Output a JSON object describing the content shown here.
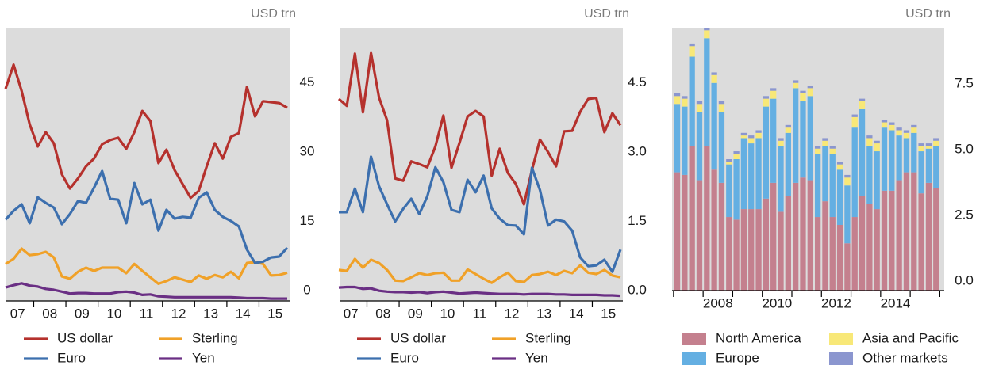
{
  "chart_data": [
    {
      "type": "line",
      "y_unit_label": "USD trn",
      "x": [
        2007.125,
        2007.375,
        2007.625,
        2007.875,
        2008.125,
        2008.375,
        2008.625,
        2008.875,
        2009.125,
        2009.375,
        2009.625,
        2009.875,
        2010.125,
        2010.375,
        2010.625,
        2010.875,
        2011.125,
        2011.375,
        2011.625,
        2011.875,
        2012.125,
        2012.375,
        2012.625,
        2012.875,
        2013.125,
        2013.375,
        2013.625,
        2013.875,
        2014.125,
        2014.375,
        2014.625,
        2014.875,
        2015.125,
        2015.375,
        2015.625,
        2015.875
      ],
      "xlim": [
        2007.15,
        2015.95
      ],
      "xticks": [
        {
          "value": 2007.5,
          "label": "07"
        },
        {
          "value": 2008.5,
          "label": "08"
        },
        {
          "value": 2009.5,
          "label": "09"
        },
        {
          "value": 2010.5,
          "label": "10"
        },
        {
          "value": 2011.5,
          "label": "11"
        },
        {
          "value": 2012.5,
          "label": "12"
        },
        {
          "value": 2013.5,
          "label": "13"
        },
        {
          "value": 2014.5,
          "label": "14"
        },
        {
          "value": 2015.5,
          "label": "15"
        }
      ],
      "xtick_marks": [
        2008,
        2009,
        2010,
        2011,
        2012,
        2013,
        2014,
        2015
      ],
      "ylim": [
        -2.2,
        56.9
      ],
      "yticks": [
        0,
        15,
        30,
        45
      ],
      "series": [
        {
          "name": "US dollar",
          "color": "#b5312d",
          "values": [
            43.7,
            48.9,
            43.2,
            36,
            31.2,
            34.3,
            31.9,
            25.2,
            22.1,
            24.3,
            26.9,
            28.6,
            31.7,
            32.6,
            33.1,
            30.7,
            34.3,
            38.9,
            36.7,
            27.6,
            30.5,
            26.1,
            23.1,
            20.1,
            21.6,
            26.9,
            31.9,
            28.6,
            33.3,
            34.1,
            44.1,
            37.7,
            41,
            40.8,
            40.6,
            39.6
          ]
        },
        {
          "name": "Sterling",
          "color": "#f0a128",
          "values": [
            5.8,
            6.9,
            9.1,
            7.7,
            7.9,
            8.4,
            7.2,
            3.1,
            2.6,
            4.1,
            5,
            4.3,
            5,
            5,
            5,
            3.8,
            5.8,
            4.3,
            2.9,
            1.5,
            2.1,
            2.9,
            2.4,
            1.9,
            3.3,
            2.6,
            3.4,
            2.9,
            4.1,
            2.7,
            6,
            6.2,
            5.8,
            3.3,
            3.4,
            3.9
          ]
        },
        {
          "name": "Euro",
          "color": "#3c6fae",
          "values": [
            15.4,
            17.3,
            18.7,
            14.6,
            20.2,
            19,
            18,
            14.4,
            16.6,
            19.4,
            19,
            22.3,
            25.9,
            19.9,
            19.7,
            14.6,
            23.3,
            18.7,
            19.7,
            13,
            17.5,
            15.6,
            16,
            15.8,
            20.1,
            21.3,
            17.5,
            16,
            15.1,
            13.9,
            8.9,
            6,
            6.3,
            7.2,
            7.4,
            9.3
          ]
        },
        {
          "name": "Yen",
          "color": "#6a2f84",
          "values": [
            0.7,
            1.2,
            1.6,
            1.1,
            0.9,
            0.4,
            0.2,
            -0.2,
            -0.6,
            -0.5,
            -0.5,
            -0.6,
            -0.6,
            -0.6,
            -0.3,
            -0.2,
            -0.4,
            -0.9,
            -0.8,
            -1.2,
            -1.3,
            -1.4,
            -1.4,
            -1.4,
            -1.4,
            -1.4,
            -1.4,
            -1.4,
            -1.4,
            -1.5,
            -1.6,
            -1.6,
            -1.6,
            -1.7,
            -1.7,
            -1.7
          ]
        }
      ]
    },
    {
      "type": "line",
      "y_unit_label": "USD trn",
      "x": [
        2007.125,
        2007.375,
        2007.625,
        2007.875,
        2008.125,
        2008.375,
        2008.625,
        2008.875,
        2009.125,
        2009.375,
        2009.625,
        2009.875,
        2010.125,
        2010.375,
        2010.625,
        2010.875,
        2011.125,
        2011.375,
        2011.625,
        2011.875,
        2012.125,
        2012.375,
        2012.625,
        2012.875,
        2013.125,
        2013.375,
        2013.625,
        2013.875,
        2014.125,
        2014.375,
        2014.625,
        2014.875,
        2015.125,
        2015.375,
        2015.625,
        2015.875
      ],
      "xlim": [
        2007.15,
        2015.95
      ],
      "xticks": [
        {
          "value": 2007.5,
          "label": "07"
        },
        {
          "value": 2008.5,
          "label": "08"
        },
        {
          "value": 2009.5,
          "label": "09"
        },
        {
          "value": 2010.5,
          "label": "10"
        },
        {
          "value": 2011.5,
          "label": "11"
        },
        {
          "value": 2012.5,
          "label": "12"
        },
        {
          "value": 2013.5,
          "label": "13"
        },
        {
          "value": 2014.5,
          "label": "14"
        },
        {
          "value": 2015.5,
          "label": "15"
        }
      ],
      "xtick_marks": [
        2008,
        2009,
        2010,
        2011,
        2012,
        2013,
        2014,
        2015
      ],
      "ylim": [
        -0.22,
        5.69
      ],
      "yticks": [
        {
          "value": 0,
          "label": "0.0"
        },
        1.5,
        {
          "value": 3,
          "label": "3.0"
        },
        4.5
      ],
      "series": [
        {
          "name": "US dollar",
          "color": "#b5312d",
          "values": [
            4.15,
            4.0,
            5.13,
            3.86,
            5.14,
            4.18,
            3.69,
            2.43,
            2.38,
            2.8,
            2.74,
            2.67,
            3.12,
            3.79,
            2.66,
            3.2,
            3.77,
            3.89,
            3.77,
            2.49,
            3.07,
            2.55,
            2.31,
            1.87,
            2.61,
            3.27,
            3.0,
            2.69,
            3.45,
            3.46,
            3.87,
            4.15,
            4.17,
            3.43,
            3.84,
            3.58
          ]
        },
        {
          "name": "Sterling",
          "color": "#f0a128",
          "values": [
            0.45,
            0.43,
            0.69,
            0.5,
            0.67,
            0.6,
            0.45,
            0.22,
            0.21,
            0.29,
            0.38,
            0.34,
            0.38,
            0.39,
            0.22,
            0.22,
            0.46,
            0.36,
            0.26,
            0.17,
            0.29,
            0.39,
            0.21,
            0.19,
            0.34,
            0.36,
            0.41,
            0.34,
            0.43,
            0.38,
            0.55,
            0.39,
            0.36,
            0.45,
            0.33,
            0.29
          ]
        },
        {
          "name": "Euro",
          "color": "#3c6fae",
          "values": [
            1.7,
            1.7,
            2.21,
            1.7,
            2.9,
            2.26,
            1.87,
            1.5,
            1.77,
            1.99,
            1.66,
            2.04,
            2.67,
            2.35,
            1.75,
            1.7,
            2.4,
            2.13,
            2.49,
            1.78,
            1.56,
            1.42,
            1.41,
            1.22,
            2.66,
            2.18,
            1.41,
            1.54,
            1.5,
            1.3,
            0.72,
            0.53,
            0.55,
            0.67,
            0.41,
            0.89
          ]
        },
        {
          "name": "Yen",
          "color": "#6a2f84",
          "values": [
            0.07,
            0.08,
            0.08,
            0.04,
            0.05,
            0.0,
            -0.02,
            -0.03,
            -0.03,
            -0.04,
            -0.03,
            -0.05,
            -0.03,
            -0.02,
            -0.04,
            -0.06,
            -0.05,
            -0.04,
            -0.05,
            -0.06,
            -0.07,
            -0.07,
            -0.07,
            -0.08,
            -0.07,
            -0.07,
            -0.07,
            -0.08,
            -0.08,
            -0.09,
            -0.09,
            -0.09,
            -0.09,
            -0.1,
            -0.1,
            -0.11
          ]
        }
      ]
    },
    {
      "type": "stacked_bar",
      "y_unit_label": "USD trn",
      "x": [
        2007.125,
        2007.375,
        2007.625,
        2007.875,
        2008.125,
        2008.375,
        2008.625,
        2008.875,
        2009.125,
        2009.375,
        2009.625,
        2009.875,
        2010.125,
        2010.375,
        2010.625,
        2010.875,
        2011.125,
        2011.375,
        2011.625,
        2011.875,
        2012.125,
        2012.375,
        2012.625,
        2012.875,
        2013.125,
        2013.375,
        2013.625,
        2013.875,
        2014.125,
        2014.375,
        2014.625,
        2014.875,
        2015.125,
        2015.375,
        2015.625,
        2015.875
      ],
      "xlim": [
        2006.95,
        2016.15
      ],
      "xticks": [
        {
          "value": 2008.5,
          "label": "2008"
        },
        {
          "value": 2010.5,
          "label": "2010"
        },
        {
          "value": 2012.5,
          "label": "2012"
        },
        {
          "value": 2014.5,
          "label": "2014"
        }
      ],
      "xtick_marks": [
        2007,
        2008,
        2009,
        2010,
        2011,
        2012,
        2013,
        2014,
        2015,
        2016
      ],
      "ylim": [
        0,
        10
      ],
      "yticks": [
        {
          "value": 0,
          "label": "0.0"
        },
        2.5,
        {
          "value": 5,
          "label": "5.0"
        },
        7.5
      ],
      "series": [
        {
          "name": "North America",
          "color": "#c4808e",
          "values": [
            4.5,
            4.4,
            5.5,
            4.2,
            5.5,
            4.6,
            4.1,
            2.8,
            2.7,
            3.1,
            3.1,
            3.1,
            3.5,
            4.1,
            3.0,
            3.6,
            4.1,
            4.3,
            4.2,
            2.8,
            3.4,
            2.8,
            2.5,
            1.8,
            2.8,
            3.6,
            3.3,
            3.1,
            3.8,
            3.8,
            4.2,
            4.5,
            4.5,
            3.7,
            4.1,
            3.9
          ]
        },
        {
          "name": "Europe",
          "color": "#64afe2",
          "values": [
            2.6,
            2.6,
            3.4,
            2.6,
            4.1,
            3.3,
            2.7,
            2.0,
            2.3,
            2.7,
            2.5,
            2.7,
            3.5,
            3.2,
            2.5,
            2.4,
            3.6,
            2.9,
            3.2,
            2.4,
            2.1,
            2.4,
            2.1,
            2.2,
            3.4,
            3.3,
            2.2,
            2.2,
            2.4,
            2.3,
            1.7,
            1.3,
            1.5,
            1.6,
            1.3,
            1.6
          ]
        },
        {
          "name": "Asia and Pacific",
          "color": "#f8e878",
          "values": [
            0.3,
            0.3,
            0.4,
            0.3,
            0.3,
            0.3,
            0.3,
            0.1,
            0.2,
            0.1,
            0.2,
            0.2,
            0.3,
            0.3,
            0.2,
            0.2,
            0.2,
            0.3,
            0.3,
            0.2,
            0.2,
            0.2,
            0.2,
            0.3,
            0.4,
            0.3,
            0.3,
            0.3,
            0.2,
            0.2,
            0.2,
            0.2,
            0.2,
            0.2,
            0.1,
            0.2
          ]
        },
        {
          "name": "Other markets",
          "color": "#8b96cf",
          "values": [
            0.1,
            0.1,
            0.1,
            0.1,
            0.1,
            0.1,
            0.1,
            0.1,
            0.1,
            0.1,
            0.1,
            0.1,
            0.1,
            0.1,
            0.1,
            0.1,
            0.1,
            0.1,
            0.1,
            0.1,
            0.1,
            0.1,
            0.1,
            0.1,
            0.1,
            0.1,
            0.1,
            0.1,
            0.1,
            0.1,
            0.1,
            0.1,
            0.1,
            0.1,
            0.1,
            0.1
          ]
        }
      ]
    }
  ]
}
